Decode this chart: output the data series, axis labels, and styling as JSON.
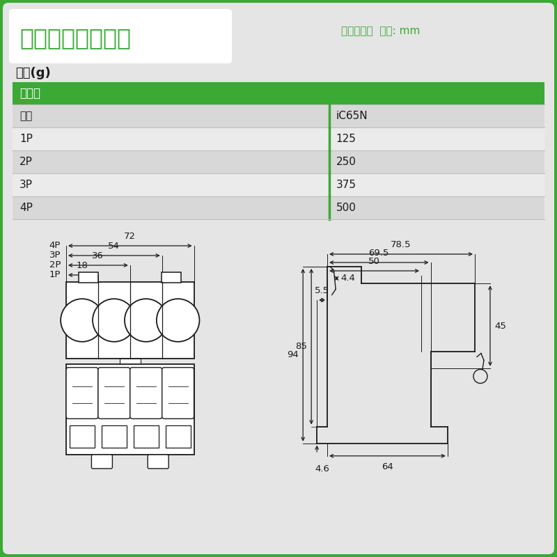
{
  "bg_color": "#3aaa35",
  "inner_bg": "#e5e5e5",
  "title_text": "施耗德工业自动化",
  "title_color": "#3aaa35",
  "subtitle_text": "产品尺寸：  单位: mm",
  "subtitle_color": "#3aaa35",
  "weight_label": "重量(g)",
  "table_header": "断路器",
  "table_header_bg": "#3aaa35",
  "table_header_color": "#ffffff",
  "col_divider_color": "#3aaa35",
  "row_divider_color": "#bbbbbb",
  "row_alt_bg": "#d8d8d8",
  "row_white_bg": "#ebebeb",
  "table_rows": [
    [
      "类型",
      "iC65N"
    ],
    [
      "1P",
      "125"
    ],
    [
      "2P",
      "250"
    ],
    [
      "3P",
      "375"
    ],
    [
      "4P",
      "500"
    ]
  ],
  "dim_color": "#1a1a1a",
  "line_color": "#1a1a1a"
}
